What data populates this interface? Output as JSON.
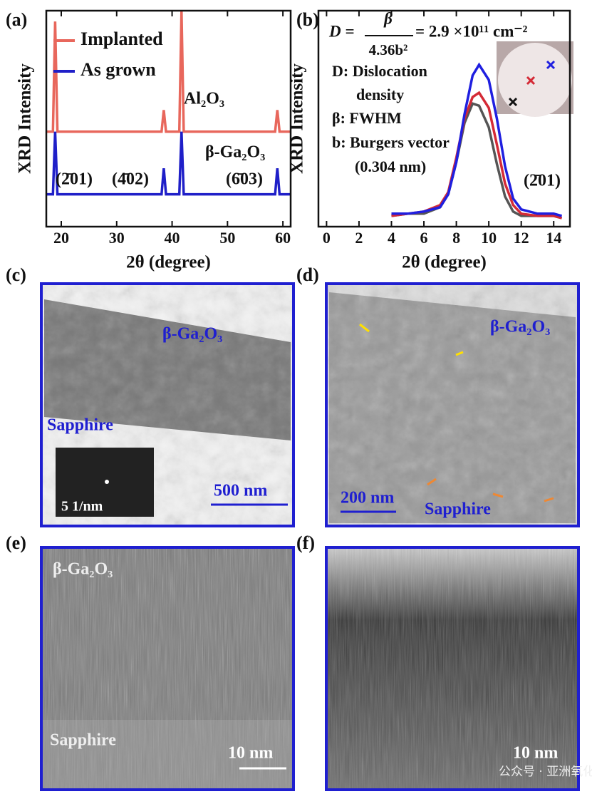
{
  "chart_data": [
    {
      "type": "line",
      "label": "(a)",
      "xlabel": "2θ (degree)",
      "ylabel": "XRD Intensity",
      "x": [
        17.3,
        18.5,
        18.9,
        19.3,
        25,
        30,
        35,
        38.1,
        38.5,
        38.9,
        41.3,
        41.7,
        42.1,
        50,
        55,
        58.6,
        59,
        59.4,
        61.4
      ],
      "series": [
        {
          "name": "Implanted",
          "color": "#e8675c",
          "values": [
            4.4,
            4.4,
            9.5,
            4.4,
            4.4,
            4.4,
            4.4,
            4.4,
            5.4,
            4.4,
            4.4,
            10,
            4.4,
            4.4,
            4.4,
            4.4,
            5.4,
            4.4,
            4.4
          ]
        },
        {
          "name": "As grown",
          "color": "#1f1fc8",
          "values": [
            1.5,
            1.5,
            4.4,
            1.5,
            1.5,
            1.5,
            1.5,
            1.5,
            2.7,
            1.5,
            1.5,
            4.4,
            1.5,
            1.5,
            1.5,
            1.5,
            2.7,
            1.5,
            1.5
          ]
        }
      ],
      "xlim": [
        17.3,
        61.4
      ],
      "ylim": [
        0,
        10
      ],
      "xticks": [
        20,
        30,
        40,
        50,
        60
      ],
      "annotations": [
        "(a)",
        "Al₂O₃",
        "β-Ga₂O₃",
        "(2̄01)",
        "(4̄02)",
        "(6̄03)"
      ]
    },
    {
      "type": "line",
      "label": "(b)",
      "xlabel": "2θ (degree)",
      "ylabel": "XRD Intensity",
      "x": [
        4,
        5,
        6,
        7,
        7.5,
        8,
        8.5,
        9,
        9.4,
        10,
        10.5,
        11,
        11.5,
        12,
        13,
        14,
        14.5
      ],
      "series": [
        {
          "color": "#555555",
          "values": [
            0.5,
            0.6,
            0.6,
            0.9,
            1.5,
            3.0,
            4.8,
            5.7,
            5.6,
            4.6,
            2.9,
            1.4,
            0.7,
            0.5,
            0.5,
            0.5,
            0.4
          ]
        },
        {
          "color": "#d42a36",
          "values": [
            0.5,
            0.6,
            0.7,
            1.0,
            1.6,
            3.2,
            5.0,
            6.0,
            6.2,
            5.5,
            3.8,
            2.0,
            1.0,
            0.6,
            0.5,
            0.5,
            0.4
          ]
        },
        {
          "color": "#1f1fe0",
          "values": [
            0.6,
            0.6,
            0.7,
            0.9,
            1.5,
            3.0,
            5.2,
            7.0,
            7.5,
            6.8,
            5.0,
            2.8,
            1.3,
            0.8,
            0.6,
            0.6,
            0.5
          ]
        }
      ],
      "xlim": [
        -0.5,
        15
      ],
      "ylim": [
        0,
        10
      ],
      "xticks": [
        0,
        2,
        4,
        6,
        8,
        10,
        12,
        14
      ],
      "annotations": [
        "(b)",
        "D =",
        "β",
        "4.36b²",
        "= 2.9 ×10¹¹ cm⁻²",
        "D: Dislocation",
        "density",
        "β: FWHM",
        "b: Burgers vector",
        "(0.304 nm)",
        "(2̄01)"
      ]
    }
  ],
  "panels": [
    {
      "label": "(c)",
      "texts": [
        "β-Ga₂O₃",
        "Sapphire",
        "5 1/nm",
        "500 nm"
      ]
    },
    {
      "label": "(d)",
      "texts": [
        "β-Ga₂O₃",
        "200 nm",
        "Sapphire"
      ]
    },
    {
      "label": "(e)",
      "texts": [
        "β-Ga₂O₃",
        "Sapphire",
        "10 nm"
      ]
    },
    {
      "label": "(f)",
      "texts": [
        "10 nm"
      ]
    }
  ],
  "watermark": "公众号 · 亚洲氧化家联盟"
}
